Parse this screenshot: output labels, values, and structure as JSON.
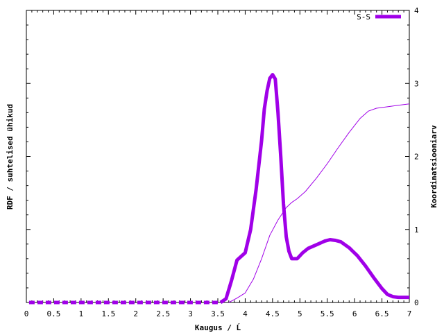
{
  "chart_data": {
    "type": "line",
    "xlabel": "Kaugus / Ĺ",
    "ylabel_left": "RDF / suhtelised ühikud",
    "ylabel_right": "Koordinatsiooniarv",
    "xlim": [
      0,
      7
    ],
    "ylim_right": [
      0,
      4
    ],
    "x_ticks": [
      "0",
      "0.5",
      "1",
      "1.5",
      "2",
      "2.5",
      "3",
      "3.5",
      "4",
      "4.5",
      "5",
      "5.5",
      "6",
      "6.5",
      "7"
    ],
    "y_ticks_right": [
      "0",
      "1",
      "2",
      "3",
      "4"
    ],
    "legend": {
      "label": "S-S",
      "position": "top-right"
    },
    "grid": false,
    "series": [
      {
        "name": "S-S",
        "axis": "left",
        "color": "#a000e8",
        "style": "dashed-thick",
        "x": [
          0.05,
          3.55,
          3.65,
          3.75,
          3.85,
          4.0,
          4.1,
          4.2,
          4.3,
          4.35,
          4.4,
          4.45,
          4.5,
          4.55,
          4.6,
          4.65,
          4.7,
          4.75,
          4.8,
          4.85,
          4.95,
          5.05,
          5.15,
          5.3,
          5.45,
          5.55,
          5.65,
          5.75,
          5.9,
          6.05,
          6.2,
          6.35,
          6.5,
          6.6,
          6.7,
          6.8,
          6.9,
          7.0
        ],
        "values": [
          0.0,
          0.0,
          0.05,
          0.3,
          0.58,
          0.68,
          1.0,
          1.55,
          2.22,
          2.65,
          2.9,
          3.07,
          3.12,
          3.06,
          2.6,
          2.0,
          1.35,
          0.9,
          0.7,
          0.6,
          0.6,
          0.68,
          0.74,
          0.79,
          0.84,
          0.86,
          0.85,
          0.83,
          0.75,
          0.64,
          0.5,
          0.34,
          0.19,
          0.11,
          0.08,
          0.07,
          0.07,
          0.07
        ]
      },
      {
        "name": "",
        "axis": "right",
        "color": "#a000e8",
        "style": "thin",
        "x": [
          3.7,
          3.85,
          4.0,
          4.15,
          4.3,
          4.45,
          4.6,
          4.75,
          4.85,
          4.95,
          5.1,
          5.3,
          5.5,
          5.7,
          5.9,
          6.1,
          6.25,
          6.4,
          6.6,
          6.8,
          7.0
        ],
        "values": [
          0.0,
          0.06,
          0.13,
          0.32,
          0.6,
          0.92,
          1.13,
          1.3,
          1.37,
          1.42,
          1.52,
          1.7,
          1.9,
          2.12,
          2.33,
          2.52,
          2.62,
          2.66,
          2.68,
          2.7,
          2.72
        ]
      }
    ]
  }
}
